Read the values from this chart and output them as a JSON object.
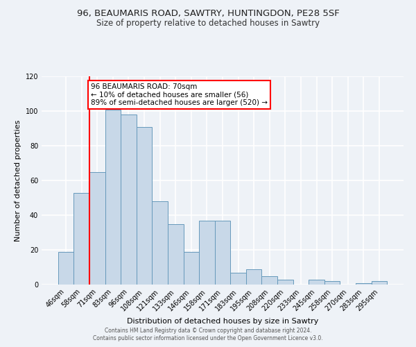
{
  "title": "96, BEAUMARIS ROAD, SAWTRY, HUNTINGDON, PE28 5SF",
  "subtitle": "Size of property relative to detached houses in Sawtry",
  "xlabel": "Distribution of detached houses by size in Sawtry",
  "ylabel": "Number of detached properties",
  "bar_labels": [
    "46sqm",
    "58sqm",
    "71sqm",
    "83sqm",
    "96sqm",
    "108sqm",
    "121sqm",
    "133sqm",
    "146sqm",
    "158sqm",
    "171sqm",
    "183sqm",
    "195sqm",
    "208sqm",
    "220sqm",
    "233sqm",
    "245sqm",
    "258sqm",
    "270sqm",
    "283sqm",
    "295sqm"
  ],
  "bar_values": [
    19,
    53,
    65,
    101,
    98,
    91,
    48,
    35,
    19,
    37,
    37,
    7,
    9,
    5,
    3,
    0,
    3,
    2,
    0,
    1,
    2
  ],
  "bar_color": "#c8d8e8",
  "bar_edge_color": "#6699bb",
  "red_line_index": 2,
  "annotation_text": "96 BEAUMARIS ROAD: 70sqm\n← 10% of detached houses are smaller (56)\n89% of semi-detached houses are larger (520) →",
  "annotation_box_color": "white",
  "annotation_box_edge": "red",
  "ylim": [
    0,
    120
  ],
  "yticks": [
    0,
    20,
    40,
    60,
    80,
    100,
    120
  ],
  "footer1": "Contains HM Land Registry data © Crown copyright and database right 2024.",
  "footer2": "Contains public sector information licensed under the Open Government Licence v3.0.",
  "bg_color": "#eef2f7",
  "plot_bg_color": "#eef2f7",
  "grid_color": "#ffffff",
  "title_fontsize": 9.5,
  "subtitle_fontsize": 8.5,
  "ylabel_fontsize": 8,
  "xlabel_fontsize": 8,
  "tick_fontsize": 7,
  "annot_fontsize": 7.5,
  "footer_fontsize": 5.5
}
